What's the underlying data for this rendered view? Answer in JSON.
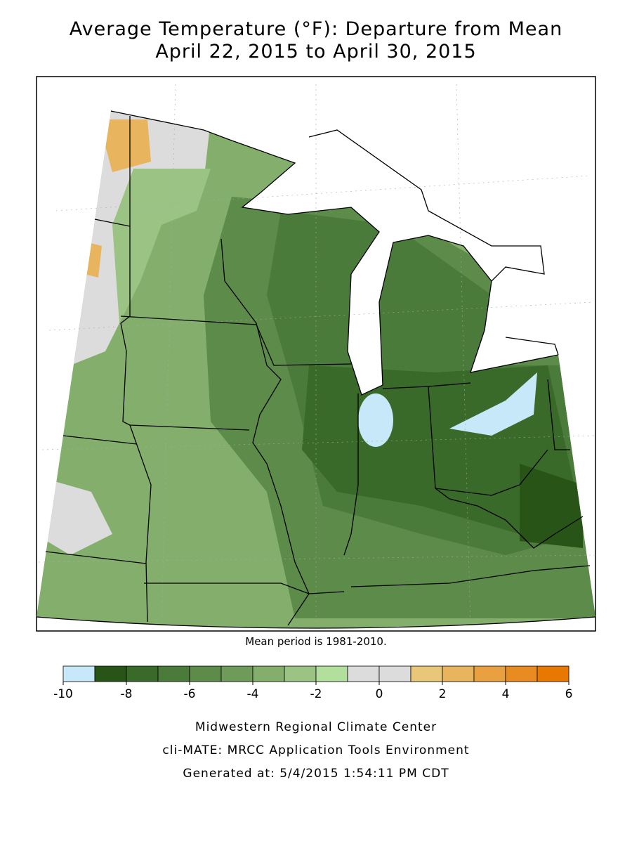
{
  "header": {
    "title": "Average Temperature (°F): Departure from Mean",
    "subtitle": "April 22, 2015 to April 30, 2015"
  },
  "map": {
    "note": "Mean period is 1981-2010."
  },
  "legend": {
    "bins": [
      -10,
      -9,
      -8,
      -7,
      -6,
      -5,
      -4,
      -3,
      -2,
      -1,
      0,
      1,
      2,
      3,
      4,
      5,
      6
    ],
    "colors": [
      "#c6e8f8",
      "#285418",
      "#3a6a2a",
      "#4b7b3a",
      "#5c8b4a",
      "#6e9b5a",
      "#84ae6c",
      "#9ac384",
      "#b2df9c",
      "#dcdcdc",
      "#dcdcdc",
      "#e8c878",
      "#e8b45e",
      "#e8a040",
      "#e88c22",
      "#e87800"
    ],
    "ticks": [
      -10,
      -8,
      -6,
      -4,
      -2,
      0,
      2,
      4,
      6
    ]
  },
  "footer": {
    "lines": [
      "Midwestern Regional Climate Center",
      "cli-MATE: MRCC Application Tools Environment",
      "Generated at: 5/4/2015 1:54:11 PM CDT"
    ]
  }
}
